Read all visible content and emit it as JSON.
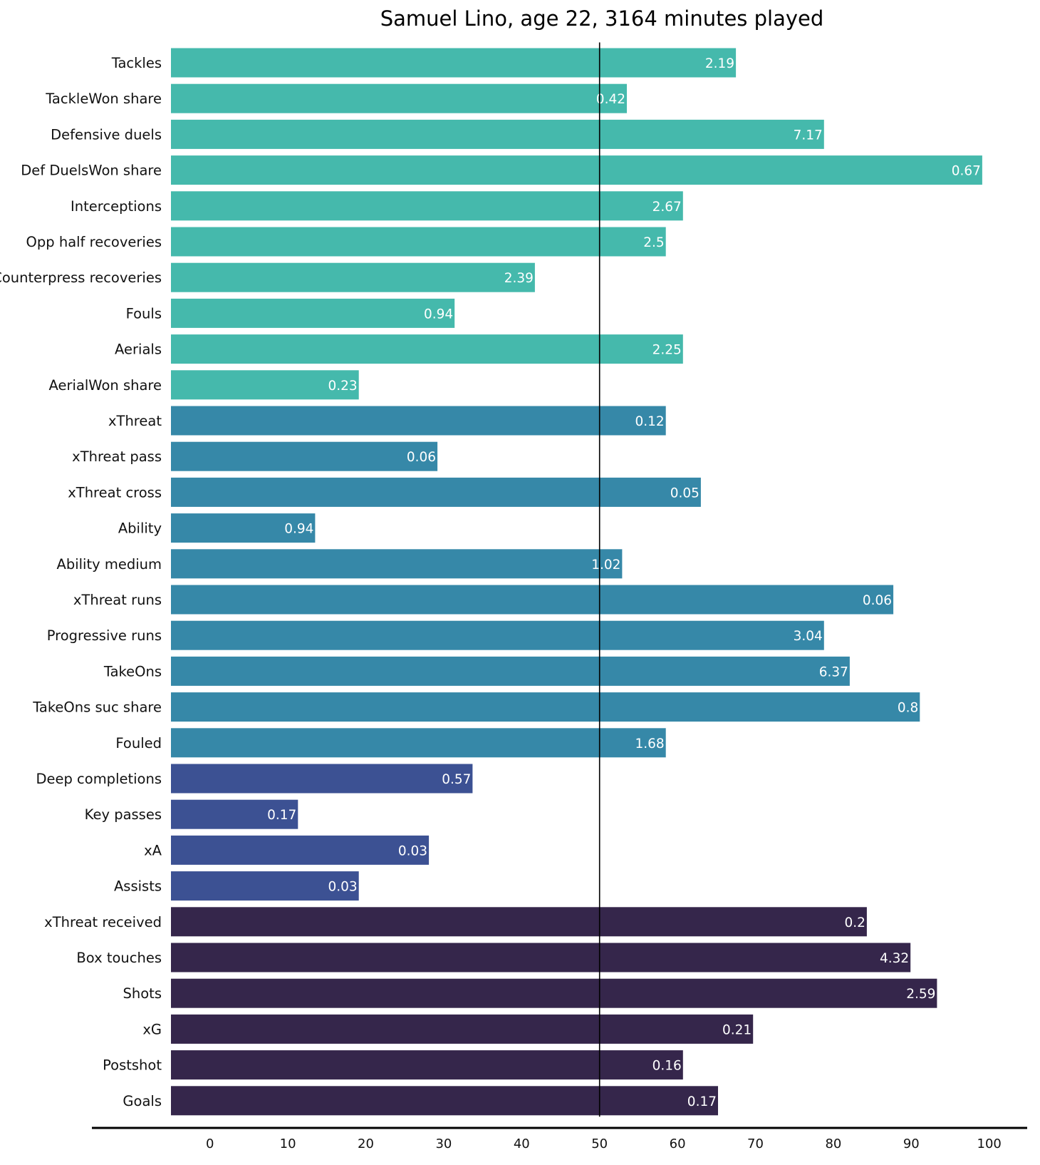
{
  "chart_data": {
    "type": "bar",
    "orientation": "horizontal",
    "title": "Samuel Lino, age 22, 3164 minutes played",
    "xlabel": "",
    "ylabel": "",
    "xlim": [
      -5,
      103
    ],
    "x_ticks": [
      0,
      10,
      20,
      30,
      40,
      50,
      60,
      70,
      80,
      90,
      100
    ],
    "reference_line": 50,
    "grid": false,
    "legend": "none",
    "group_colors": {
      "defending": "#45b9ac",
      "progression": "#3688a8",
      "creation": "#3c5193",
      "finishing": "#35264b"
    },
    "categories": [
      "Tackles",
      "TackleWon share",
      "Defensive duels",
      "Def DuelsWon share",
      "Interceptions",
      "Opp half recoveries",
      "Counterpress recoveries",
      "Fouls",
      "Aerials",
      "AerialWon share",
      "xThreat",
      "xThreat pass",
      "xThreat cross",
      "Ability",
      "Ability medium",
      "xThreat runs",
      "Progressive runs",
      "TakeOns",
      "TakeOns suc share",
      "Fouled",
      "Deep completions",
      "Key passes",
      "xA",
      "Assists",
      "xThreat received",
      "Box touches",
      "Shots",
      "xG",
      "Postshot",
      "Goals"
    ],
    "values": [
      67.5,
      53.5,
      78.8,
      99.1,
      60.7,
      58.5,
      41.7,
      31.4,
      60.7,
      19.1,
      58.5,
      29.2,
      63.0,
      13.5,
      52.9,
      87.7,
      78.8,
      82.1,
      91.1,
      58.5,
      33.7,
      11.3,
      28.1,
      19.1,
      84.3,
      89.9,
      93.3,
      69.7,
      60.7,
      65.2
    ],
    "bar_labels": [
      "2.19",
      "0.42",
      "7.17",
      "0.67",
      "2.67",
      "2.5",
      "2.39",
      "0.94",
      "2.25",
      "0.23",
      "0.12",
      "0.06",
      "0.05",
      "0.94",
      "1.02",
      "0.06",
      "3.04",
      "6.37",
      "0.8",
      "1.68",
      "0.57",
      "0.17",
      "0.03",
      "0.03",
      "0.2",
      "4.32",
      "2.59",
      "0.21",
      "0.16",
      "0.17"
    ],
    "groups": [
      "defending",
      "defending",
      "defending",
      "defending",
      "defending",
      "defending",
      "defending",
      "defending",
      "defending",
      "defending",
      "progression",
      "progression",
      "progression",
      "progression",
      "progression",
      "progression",
      "progression",
      "progression",
      "progression",
      "progression",
      "creation",
      "creation",
      "creation",
      "creation",
      "finishing",
      "finishing",
      "finishing",
      "finishing",
      "finishing",
      "finishing"
    ]
  }
}
